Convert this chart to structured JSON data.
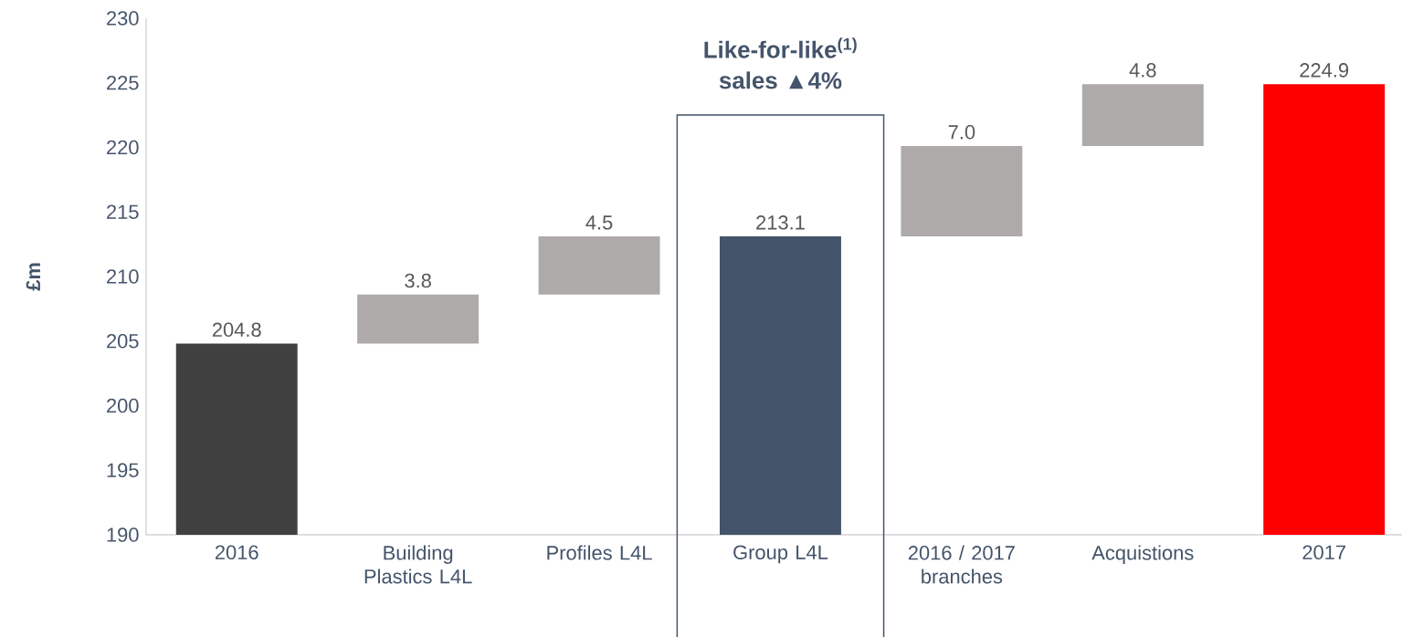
{
  "chart_data": {
    "type": "bar",
    "ylabel": "£m",
    "categories": [
      "2016",
      "Building Plastics L4L",
      "Profiles L4L",
      "Group L4L",
      "2016 / 2017 branches",
      "Acquistions",
      "2017"
    ],
    "values": [
      204.8,
      3.8,
      4.5,
      213.1,
      7.0,
      4.8,
      224.9
    ],
    "base": [
      null,
      204.8,
      208.6,
      null,
      213.1,
      220.1,
      null
    ],
    "colors": [
      "#404040",
      "#aeaaaa",
      "#aeaaaa",
      "#44546a",
      "#aeaaaa",
      "#aeaaaa",
      "#ff0000"
    ],
    "ylim": [
      190,
      230
    ],
    "yticks": [
      190,
      195,
      200,
      205,
      210,
      215,
      220,
      225,
      230
    ],
    "value_labels": [
      "204.8",
      "3.8",
      "4.5",
      "213.1",
      "7.0",
      "4.8",
      "224.9"
    ],
    "annotations": [
      "Like-for-like$^{(1)}$",
      "sales ▲4%"
    ]
  }
}
